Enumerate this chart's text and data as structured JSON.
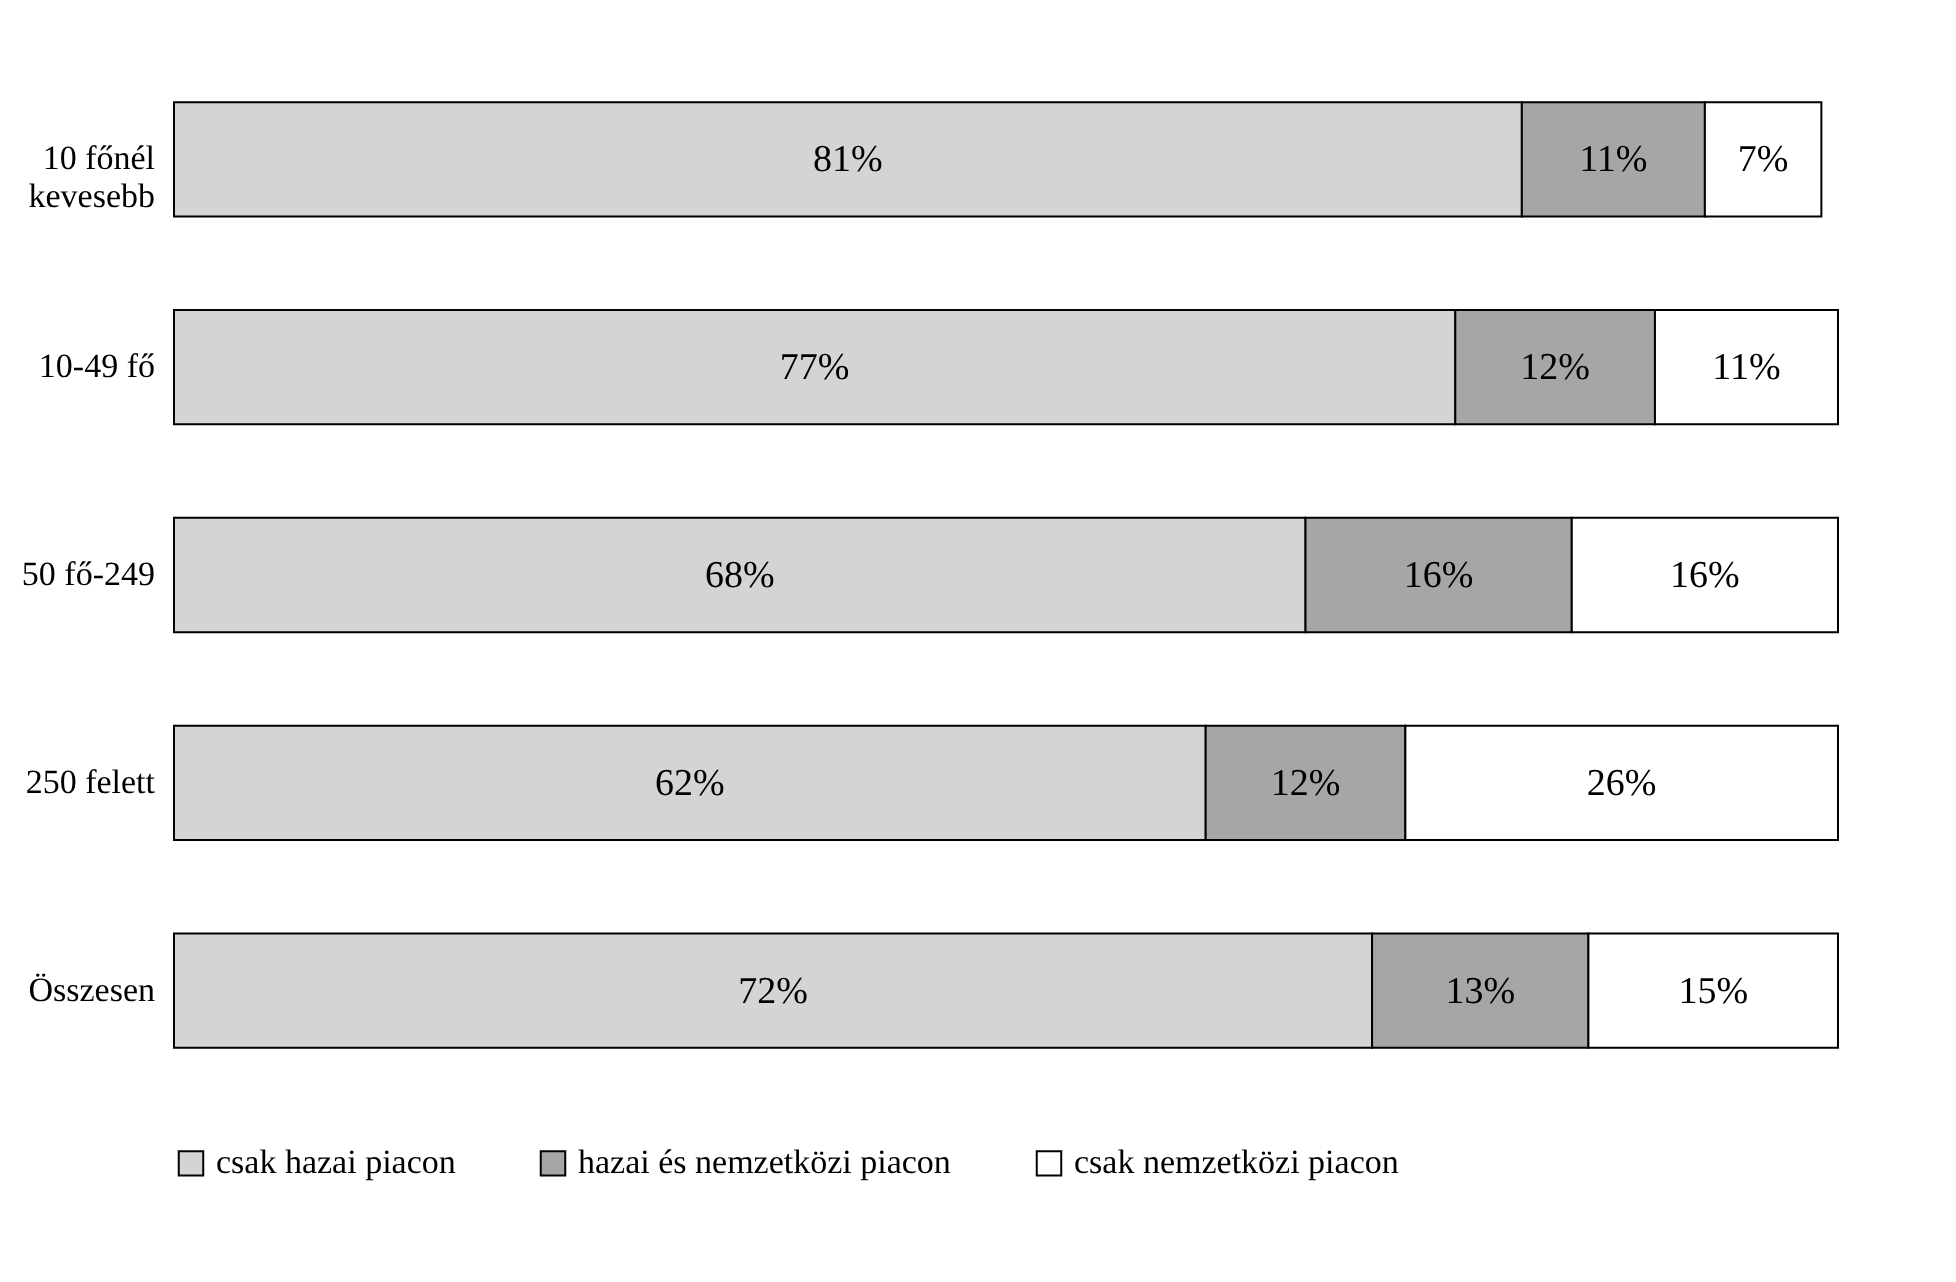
{
  "chart_data": {
    "type": "bar",
    "orientation": "horizontal",
    "stacked": true,
    "legend": "bottom",
    "tick_labels": "y",
    "categories": [
      "10 főnél kevesebb",
      "10-49 fő",
      "50 fő-249",
      "250 felett",
      "Összesen"
    ],
    "series": [
      {
        "name": "csak hazai piacon",
        "color": "#d4d4d4",
        "values": [
          81,
          77,
          68,
          62,
          72
        ],
        "value_labels": [
          "81%",
          "77%",
          "68%",
          "62%",
          "72%"
        ]
      },
      {
        "name": "hazai és nemzetközi piacon",
        "color": "#a6a6a6",
        "values": [
          11,
          12,
          16,
          12,
          13
        ],
        "value_labels": [
          "11%",
          "12%",
          "16%",
          "12%",
          "13%"
        ]
      },
      {
        "name": "csak nemzetközi piacon",
        "color": "#ffffff",
        "values": [
          7,
          11,
          16,
          26,
          15
        ],
        "value_labels": [
          "7%",
          "11%",
          "16%",
          "26%",
          "15%"
        ]
      }
    ]
  }
}
